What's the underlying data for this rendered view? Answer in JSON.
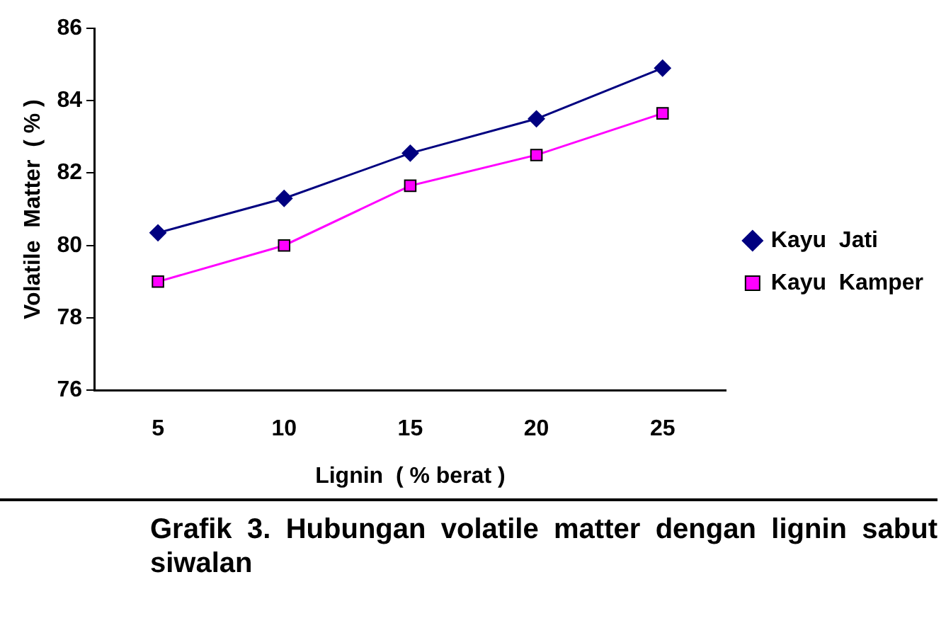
{
  "chart_data": {
    "type": "line",
    "xlabel": "Lignin  ( % berat )",
    "ylabel": "Volatile  Matter  ( % )",
    "categories": [
      "5",
      "10",
      "15",
      "20",
      "25"
    ],
    "series": [
      {
        "name": "Kayu  Jati",
        "color": "#000080",
        "marker": "diamond",
        "values": [
          80.35,
          81.3,
          82.55,
          83.5,
          84.9
        ]
      },
      {
        "name": "Kayu  Kamper",
        "color": "#ff00ff",
        "marker": "square",
        "values": [
          79.0,
          80.0,
          81.65,
          82.5,
          83.65
        ]
      }
    ],
    "ylim": [
      76,
      86
    ],
    "yticks": [
      76,
      78,
      80,
      82,
      84,
      86
    ],
    "grid": false,
    "legend": "right",
    "annotations": [
      "Grafik 3. Hubungan volatile matter dengan lignin sabut siwalan"
    ]
  }
}
